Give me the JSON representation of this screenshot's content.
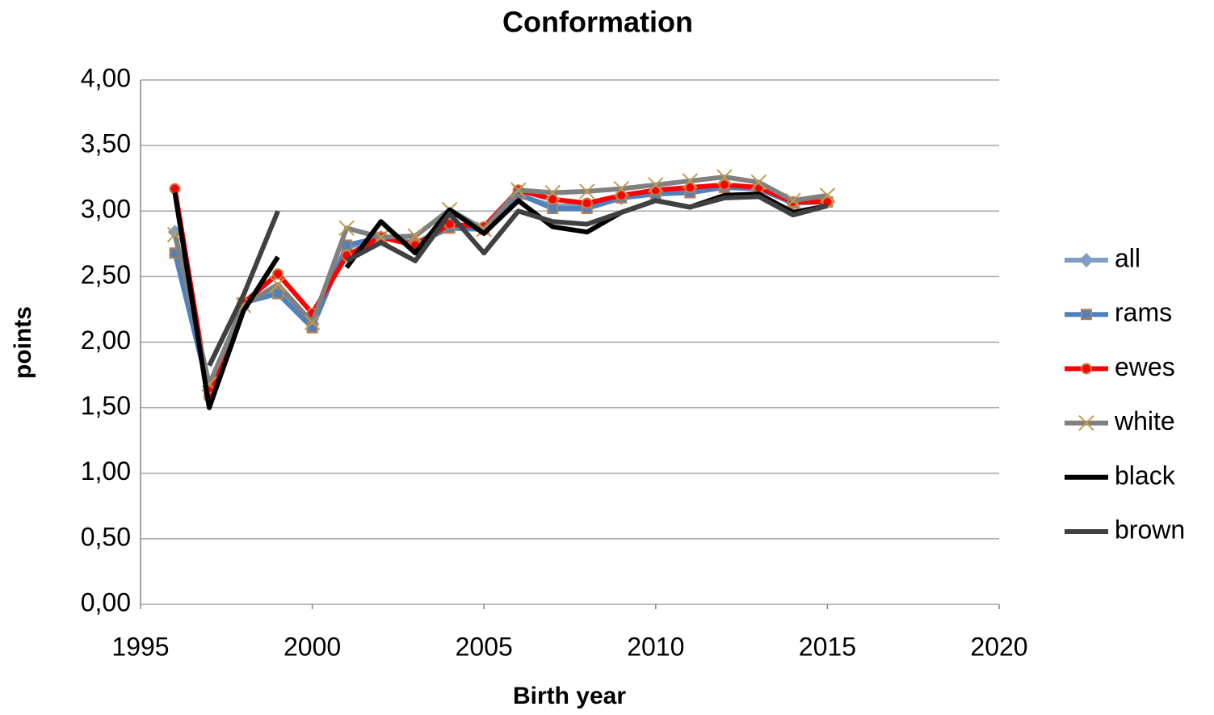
{
  "chart_data": {
    "type": "line",
    "title": "Conformation",
    "x_label": "Birth year",
    "y_label": "points",
    "x": [
      1996,
      1997,
      1998,
      1999,
      2000,
      2001,
      2002,
      2003,
      2004,
      2005,
      2006,
      2007,
      2008,
      2009,
      2010,
      2011,
      2012,
      2013,
      2014,
      2015
    ],
    "series": [
      {
        "name": "all",
        "color": "#7f9fc0",
        "marker": "diamond",
        "marker_color": "#7f9fc0",
        "values": [
          2.84,
          1.66,
          2.3,
          2.38,
          2.14,
          2.72,
          2.8,
          2.76,
          2.88,
          2.86,
          3.12,
          3.04,
          3.04,
          3.1,
          3.14,
          3.15,
          3.18,
          3.17,
          3.06,
          3.08
        ]
      },
      {
        "name": "rams",
        "color": "#4f81bd",
        "marker": "square",
        "marker_color": "#c0804d",
        "values": [
          2.68,
          1.62,
          2.3,
          2.37,
          2.11,
          2.74,
          2.8,
          2.75,
          2.87,
          2.86,
          3.13,
          3.02,
          3.02,
          3.1,
          3.13,
          3.14,
          3.18,
          3.17,
          3.06,
          3.07
        ]
      },
      {
        "name": "ewes",
        "color": "#ff0000",
        "marker": "circle",
        "marker_color": "#c0804d",
        "values": [
          3.17,
          1.58,
          2.3,
          2.52,
          2.22,
          2.66,
          2.8,
          2.74,
          2.9,
          2.88,
          3.16,
          3.09,
          3.06,
          3.12,
          3.16,
          3.18,
          3.2,
          3.18,
          3.07,
          3.07
        ]
      },
      {
        "name": "white",
        "color": "#808080",
        "marker": "x",
        "marker_color": "#c09a50",
        "values": [
          2.82,
          1.68,
          2.28,
          2.44,
          2.15,
          2.87,
          2.8,
          2.81,
          3.01,
          2.86,
          3.16,
          3.14,
          3.15,
          3.17,
          3.2,
          3.23,
          3.26,
          3.22,
          3.08,
          3.12
        ]
      },
      {
        "name": "black",
        "color": "#000000",
        "marker": "none",
        "values": [
          3.14,
          1.5,
          2.24,
          2.65,
          null,
          2.57,
          2.92,
          2.68,
          3.01,
          2.83,
          3.08,
          2.88,
          2.84,
          2.99,
          3.08,
          3.03,
          3.12,
          3.13,
          2.99,
          3.04
        ]
      },
      {
        "name": "brown",
        "color": "#404040",
        "marker": "none",
        "values": [
          null,
          1.82,
          2.36,
          3.0,
          null,
          2.62,
          2.76,
          2.62,
          2.98,
          2.68,
          3.0,
          2.92,
          2.9,
          2.99,
          3.08,
          3.03,
          3.1,
          3.11,
          2.97,
          3.04
        ]
      }
    ],
    "xlim": [
      1995,
      2020
    ],
    "xticks": [
      1995,
      2000,
      2005,
      2010,
      2015,
      2020
    ],
    "ylim": [
      0,
      4
    ],
    "yticks": [
      {
        "value": 0,
        "label": "0,00"
      },
      {
        "value": 0.5,
        "label": "0,50"
      },
      {
        "value": 1,
        "label": "1,00"
      },
      {
        "value": 1.5,
        "label": "1,50"
      },
      {
        "value": 2,
        "label": "2,00"
      },
      {
        "value": 2.5,
        "label": "2,50"
      },
      {
        "value": 3,
        "label": "3,00"
      },
      {
        "value": 3.5,
        "label": "3,50"
      },
      {
        "value": 4,
        "label": "4,00"
      }
    ],
    "grid": true,
    "legend": "right"
  }
}
